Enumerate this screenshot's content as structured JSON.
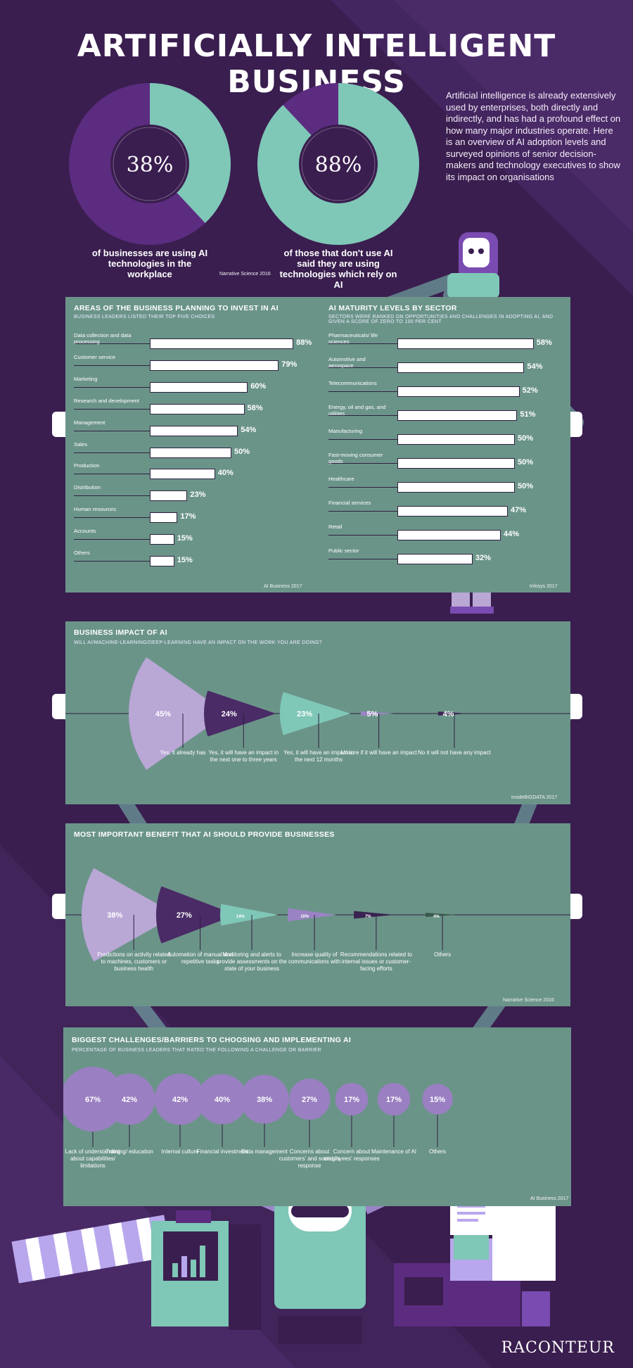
{
  "title": "ARTIFICIALLY INTELLIGENT BUSINESS",
  "intro": "Artificial intelligence is already extensively used by enterprises, both directly and indirectly, and has had a profound effect on how many major industries operate. Here is an overview of AI adoption levels and surveyed opinions of senior decision-makers and technology executives to show its impact on organisations",
  "colors": {
    "bg": "#3a1e4f",
    "purple": "#5b2c80",
    "mint": "#7fc7b7",
    "lavender": "#b9a7d6",
    "panel": "#6b9489",
    "dark": "#3a2351",
    "darkgreen": "#3b5a4e"
  },
  "donuts": [
    {
      "value": 38,
      "label": "38%",
      "caption": "of businesses are using AI technologies in the workplace"
    },
    {
      "value": 88,
      "label": "88%",
      "caption": "of those that don't use AI said they are using technologies which rely on AI"
    }
  ],
  "donut_source": "Narrative Science 2016",
  "logo": "RACONTEUR",
  "chart_data": [
    {
      "type": "bar",
      "title": "AREAS OF THE BUSINESS PLANNING TO INVEST IN AI",
      "subtitle": "BUSINESS LEADERS LISTED THEIR TOP FIVE CHOICES",
      "source": "AI Business 2017",
      "categories": [
        "Data collection and data processing",
        "Customer service",
        "Marketing",
        "Research and development",
        "Management",
        "Sales",
        "Production",
        "Distribution",
        "Human resources",
        "Accounts",
        "Others"
      ],
      "values": [
        88,
        79,
        60,
        58,
        54,
        50,
        40,
        23,
        17,
        15,
        15
      ],
      "labels": [
        "88%",
        "79%",
        "60%",
        "58%",
        "54%",
        "50%",
        "40%",
        "23%",
        "17%",
        "15%",
        "15%"
      ]
    },
    {
      "type": "bar",
      "title": "AI MATURITY LEVELS BY SECTOR",
      "subtitle": "SECTORS WERE RANKED ON OPPORTUNITIES AND CHALLENGES IN ADOPTING AI, AND GIVEN A SCORE OF ZERO TO 100 PER CENT",
      "source": "Infosys 2017",
      "categories": [
        "Pharmaceuticals/ life sciences",
        "Automotive and aerospace",
        "Telecommunications",
        "Energy, oil and gas, and utilities",
        "Manufacturing",
        "Fast-moving consumer goods",
        "Healthcare",
        "Financial services",
        "Retail",
        "Public sector"
      ],
      "values": [
        58,
        54,
        52,
        51,
        50,
        50,
        50,
        47,
        44,
        32
      ],
      "labels": [
        "58%",
        "54%",
        "52%",
        "51%",
        "50%",
        "50%",
        "50%",
        "47%",
        "44%",
        "32%"
      ]
    },
    {
      "type": "pie",
      "title": "BUSINESS IMPACT OF AI",
      "subtitle": "WILL AI/MACHINE-LEARNING/DEEP-LEARNING HAVE AN IMPACT ON THE WORK YOU ARE DOING?",
      "source": "insideBIGDATA 2017",
      "categories": [
        "Yes, it already has",
        "Yes, it will have an impact in the next one to three years",
        "Yes, it will have an impact in the next 12 months",
        "Unsure if it will have an impact",
        "No it will not have any impact"
      ],
      "values": [
        45,
        24,
        23,
        5,
        4
      ],
      "labels": [
        "45%",
        "24%",
        "23%",
        "5%",
        "4%"
      ]
    },
    {
      "type": "pie",
      "title": "MOST IMPORTANT BENEFIT THAT AI SHOULD PROVIDE BUSINESSES",
      "source": "Narrative Science 2016",
      "categories": [
        "Predictions on activity related to machines, customers or business health",
        "Automation of manual and repetitive tasks",
        "Monitoring and alerts to provide assessments on the state of your business",
        "Increase quality of communications with",
        "Recommendations related to internal issues or customer-facing efforts",
        "Others"
      ],
      "values": [
        38,
        27,
        14,
        10,
        7,
        4
      ],
      "labels": [
        "38%",
        "27%",
        "14%",
        "10%",
        "7%",
        "4%"
      ]
    },
    {
      "type": "scatter",
      "title": "BIGGEST CHALLENGES/BARRIERS TO CHOOSING AND IMPLEMENTING AI",
      "subtitle": "PERCENTAGE OF BUSINESS LEADERS THAT RATED THE FOLLOWING A CHALLENGE OR BARRIER",
      "source": "AI Business 2017",
      "categories": [
        "Lack of understanding about capabilities/ limitations",
        "Training/ education",
        "Internal culture",
        "Financial investment",
        "Data management",
        "Concerns about customers' and society's response",
        "Concern about employees' responses",
        "Maintenance of AI",
        "Others"
      ],
      "values": [
        67,
        42,
        42,
        40,
        38,
        27,
        17,
        17,
        15
      ],
      "labels": [
        "67%",
        "42%",
        "42%",
        "40%",
        "38%",
        "27%",
        "17%",
        "17%",
        "15%"
      ]
    }
  ]
}
